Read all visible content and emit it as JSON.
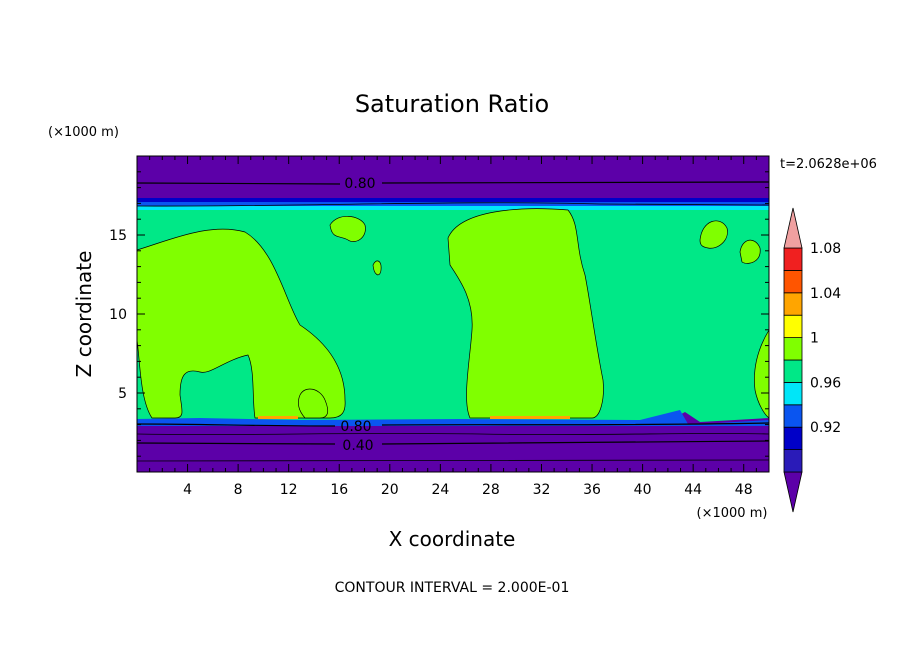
{
  "chart_data": {
    "type": "contour",
    "title": "Saturation Ratio",
    "xlabel": "X coordinate",
    "ylabel": "Z coordinate",
    "x_unit": "(×1000 m)",
    "y_unit": "(×1000 m)",
    "time_label": "t=2.0628e+06",
    "footer": "CONTOUR INTERVAL = 2.000E-01",
    "xlim": [
      0,
      50
    ],
    "ylim": [
      0,
      20
    ],
    "x_ticks": [
      "4",
      "8",
      "12",
      "16",
      "20",
      "24",
      "28",
      "32",
      "36",
      "40",
      "44",
      "48"
    ],
    "y_ticks": [
      "5",
      "10",
      "15"
    ],
    "contour_labels": [
      "0.80",
      "0.80",
      "0.40"
    ],
    "colorbar": {
      "labels": [
        "0.92",
        "0.96",
        "1",
        "1.04",
        "1.08"
      ],
      "colors": [
        "#5c00a8",
        "#2a1bb8",
        "#0000c8",
        "#0a55f0",
        "#00e6f8",
        "#00e887",
        "#80ff00",
        "#ffff00",
        "#ffa500",
        "#ff5500",
        "#f02020",
        "#f0a0a0"
      ]
    }
  }
}
